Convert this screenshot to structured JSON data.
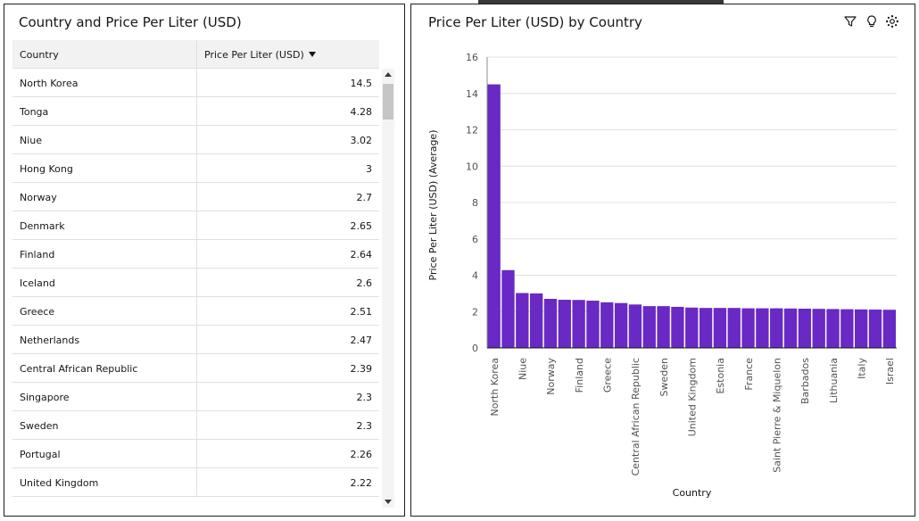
{
  "table_panel": {
    "title": "Country and Price Per Liter (USD)",
    "columns": {
      "country": "Country",
      "price": "Price Per Liter (USD)"
    },
    "rows": [
      {
        "country": "North Korea",
        "price": "14.5"
      },
      {
        "country": "Tonga",
        "price": "4.28"
      },
      {
        "country": "Niue",
        "price": "3.02"
      },
      {
        "country": "Hong Kong",
        "price": "3"
      },
      {
        "country": "Norway",
        "price": "2.7"
      },
      {
        "country": "Denmark",
        "price": "2.65"
      },
      {
        "country": "Finland",
        "price": "2.64"
      },
      {
        "country": "Iceland",
        "price": "2.6"
      },
      {
        "country": "Greece",
        "price": "2.51"
      },
      {
        "country": "Netherlands",
        "price": "2.47"
      },
      {
        "country": "Central African Republic",
        "price": "2.39"
      },
      {
        "country": "Singapore",
        "price": "2.3"
      },
      {
        "country": "Sweden",
        "price": "2.3"
      },
      {
        "country": "Portugal",
        "price": "2.26"
      },
      {
        "country": "United Kingdom",
        "price": "2.22"
      }
    ]
  },
  "chart_panel": {
    "title": "Price Per Liter (USD) by Country",
    "toolbar": [
      "filter-icon",
      "insight-bulb-icon",
      "settings-icon"
    ]
  },
  "chart_data": {
    "type": "bar",
    "xlabel": "Country",
    "ylabel": "Price Per Liter (USD) (Average)",
    "ylim": [
      0,
      16
    ],
    "yticks": [
      0,
      2,
      4,
      6,
      8,
      10,
      12,
      14,
      16
    ],
    "bar_color": "#6929c4",
    "grid": true,
    "categories": [
      "North Korea",
      "Tonga",
      "Niue",
      "Hong Kong",
      "Norway",
      "Denmark",
      "Finland",
      "Iceland",
      "Greece",
      "Netherlands",
      "Central African Republic",
      "Singapore",
      "Sweden",
      "Portugal",
      "United Kingdom",
      "Unlabeled 16",
      "Estonia",
      "Unlabeled 18",
      "France",
      "Unlabeled 20",
      "Saint Pierre & Miquelon",
      "Unlabeled 22",
      "Barbados",
      "Unlabeled 24",
      "Lithuania",
      "Unlabeled 26",
      "Italy",
      "Unlabeled 28",
      "Israel"
    ],
    "tick_labels": [
      "North Korea",
      "",
      "Niue",
      "",
      "Norway",
      "",
      "Finland",
      "",
      "Greece",
      "",
      "Central African Republic",
      "",
      "Sweden",
      "",
      "United Kingdom",
      "",
      "Estonia",
      "",
      "France",
      "",
      "Saint Pierre & Miquelon",
      "",
      "Barbados",
      "",
      "Lithuania",
      "",
      "Italy",
      "",
      "Israel"
    ],
    "values": [
      14.5,
      4.28,
      3.02,
      3,
      2.7,
      2.65,
      2.64,
      2.6,
      2.51,
      2.47,
      2.39,
      2.3,
      2.3,
      2.26,
      2.22,
      2.2,
      2.2,
      2.2,
      2.18,
      2.18,
      2.18,
      2.17,
      2.16,
      2.15,
      2.14,
      2.13,
      2.12,
      2.11,
      2.1
    ]
  }
}
